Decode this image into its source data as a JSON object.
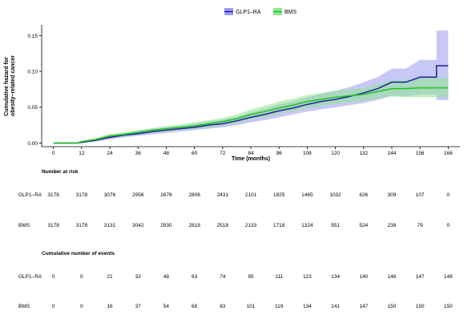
{
  "chart_data": {
    "type": "line",
    "xlabel": "Time (months)",
    "ylabel_lines": [
      "Cumulative hazard for",
      "obesity–related cancer"
    ],
    "x_ticks": [
      0,
      12,
      24,
      36,
      48,
      60,
      72,
      84,
      96,
      108,
      120,
      132,
      144,
      156,
      168
    ],
    "y_ticks": [
      0.0,
      0.05,
      0.1,
      0.15
    ],
    "y_tick_labels": [
      "0.00",
      "0.05",
      "0.10",
      "0.15"
    ],
    "xlim": [
      -5,
      173
    ],
    "ylim": [
      -0.005,
      0.165
    ],
    "legend_position": "top",
    "series": [
      {
        "name": "GLP1–RA",
        "line_color": "#1f1fa0",
        "band_color": "#9b9bf0",
        "points": [
          [
            0,
            0
          ],
          [
            10,
            0
          ],
          [
            12,
            0.001
          ],
          [
            18,
            0.004
          ],
          [
            24,
            0.008
          ],
          [
            30,
            0.011
          ],
          [
            36,
            0.013
          ],
          [
            42,
            0.016
          ],
          [
            48,
            0.018
          ],
          [
            54,
            0.02
          ],
          [
            60,
            0.022
          ],
          [
            66,
            0.025
          ],
          [
            72,
            0.027
          ],
          [
            78,
            0.031
          ],
          [
            84,
            0.036
          ],
          [
            90,
            0.04
          ],
          [
            96,
            0.045
          ],
          [
            102,
            0.049
          ],
          [
            108,
            0.054
          ],
          [
            114,
            0.058
          ],
          [
            120,
            0.061
          ],
          [
            126,
            0.065
          ],
          [
            132,
            0.07
          ],
          [
            138,
            0.076
          ],
          [
            144,
            0.085
          ],
          [
            150,
            0.085
          ],
          [
            156,
            0.092
          ],
          [
            163,
            0.092
          ],
          [
            163,
            0.108
          ],
          [
            168,
            0.108
          ]
        ],
        "lower": [
          0,
          0,
          0,
          0.002,
          0.005,
          0.008,
          0.01,
          0.012,
          0.014,
          0.016,
          0.018,
          0.02,
          0.022,
          0.025,
          0.029,
          0.032,
          0.036,
          0.04,
          0.044,
          0.047,
          0.05,
          0.053,
          0.056,
          0.06,
          0.066,
          0.065,
          0.068,
          0.068,
          0.06,
          0.06
        ],
        "upper": [
          0,
          0,
          0.002,
          0.006,
          0.011,
          0.014,
          0.017,
          0.02,
          0.022,
          0.024,
          0.027,
          0.03,
          0.033,
          0.037,
          0.043,
          0.048,
          0.054,
          0.058,
          0.064,
          0.069,
          0.073,
          0.078,
          0.085,
          0.092,
          0.104,
          0.104,
          0.116,
          0.116,
          0.157,
          0.157
        ]
      },
      {
        "name": "BMS",
        "line_color": "#1fc21f",
        "band_color": "#8ee68e",
        "points": [
          [
            0,
            0
          ],
          [
            10,
            0
          ],
          [
            12,
            0.002
          ],
          [
            18,
            0.005
          ],
          [
            24,
            0.01
          ],
          [
            30,
            0.012
          ],
          [
            36,
            0.015
          ],
          [
            42,
            0.018
          ],
          [
            48,
            0.02
          ],
          [
            54,
            0.022
          ],
          [
            60,
            0.024
          ],
          [
            66,
            0.027
          ],
          [
            72,
            0.03
          ],
          [
            78,
            0.034
          ],
          [
            84,
            0.04
          ],
          [
            90,
            0.044
          ],
          [
            96,
            0.049
          ],
          [
            102,
            0.053
          ],
          [
            108,
            0.058
          ],
          [
            114,
            0.061
          ],
          [
            120,
            0.064
          ],
          [
            126,
            0.066
          ],
          [
            132,
            0.068
          ],
          [
            138,
            0.072
          ],
          [
            144,
            0.076
          ],
          [
            150,
            0.076
          ],
          [
            156,
            0.077
          ],
          [
            163,
            0.077
          ],
          [
            168,
            0.077
          ]
        ],
        "lower": [
          0,
          0,
          0.001,
          0.003,
          0.007,
          0.009,
          0.012,
          0.014,
          0.016,
          0.018,
          0.02,
          0.022,
          0.025,
          0.028,
          0.033,
          0.036,
          0.041,
          0.044,
          0.049,
          0.052,
          0.055,
          0.057,
          0.059,
          0.062,
          0.065,
          0.064,
          0.064,
          0.064,
          0.064
        ],
        "upper": [
          0,
          0,
          0.003,
          0.007,
          0.013,
          0.015,
          0.018,
          0.021,
          0.024,
          0.026,
          0.029,
          0.032,
          0.035,
          0.04,
          0.047,
          0.052,
          0.058,
          0.062,
          0.067,
          0.07,
          0.073,
          0.075,
          0.077,
          0.082,
          0.088,
          0.089,
          0.091,
          0.091,
          0.091
        ]
      }
    ],
    "risk_table_title": "Number at risk",
    "risk_table": [
      {
        "label": "GLP1–RA",
        "values": [
          "3178",
          "3178",
          "3076",
          "2956",
          "2876",
          "2806",
          "2431",
          "2101",
          "1825",
          "1465",
          "1032",
          "626",
          "309",
          "107",
          "0"
        ]
      },
      {
        "label": "BMS",
        "values": [
          "3178",
          "3178",
          "3131",
          "3042",
          "2930",
          "2818",
          "2518",
          "2133",
          "1718",
          "1324",
          "951",
          "524",
          "238",
          "79",
          "0"
        ]
      }
    ],
    "events_table_title": "Cumulative number of events",
    "events_table": [
      {
        "label": "GLP1–RA",
        "values": [
          "0",
          "0",
          "21",
          "32",
          "48",
          "63",
          "74",
          "95",
          "111",
          "123",
          "134",
          "140",
          "146",
          "147",
          "148"
        ]
      },
      {
        "label": "BMS",
        "values": [
          "0",
          "0",
          "16",
          "37",
          "54",
          "68",
          "83",
          "101",
          "119",
          "134",
          "141",
          "147",
          "150",
          "150",
          "150"
        ]
      }
    ]
  }
}
